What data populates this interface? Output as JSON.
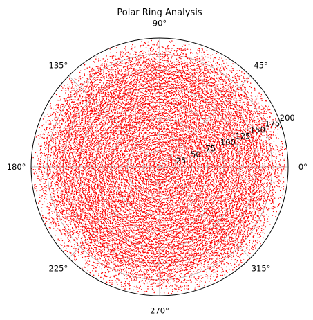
{
  "chart_data": {
    "type": "scatter",
    "projection": "polar",
    "title": "Polar Ring Analysis",
    "rlim": [
      0,
      200
    ],
    "r_ticks": [
      25,
      50,
      75,
      100,
      125,
      150,
      175,
      200
    ],
    "r_tick_labels": [
      "25",
      "50",
      "75",
      "100",
      "125",
      "150",
      "175",
      "200"
    ],
    "theta_ticks_deg": [
      0,
      45,
      90,
      135,
      180,
      225,
      270,
      315
    ],
    "theta_tick_labels": [
      "0°",
      "45°",
      "90°",
      "135°",
      "180°",
      "225°",
      "270°",
      "315°"
    ],
    "r_label_position_deg": 22.5,
    "grid": true,
    "point_color": "#ff0000",
    "series": [
      {
        "rings": {
          "r_min": 5,
          "r_max": 195,
          "spacing": 5
        },
        "radial_jitter": 1.6,
        "density_per_unit_length": 0.95,
        "dropout_near_edge": true
      }
    ]
  }
}
